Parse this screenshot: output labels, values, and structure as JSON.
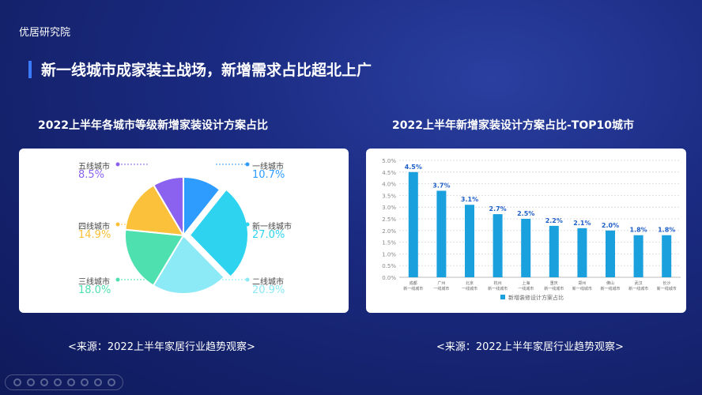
{
  "logo": "优居研究院",
  "title": "新一线城市成家装主战场，新增需求占比超北上广",
  "left": {
    "subtitle": "2022上半年各城市等级新增家装设计方案占比",
    "source": "<来源：2022上半年家居行业趋势观察>"
  },
  "right": {
    "subtitle": "2022上半年新增家装设计方案占比-TOP10城市",
    "source": "<来源：2022上半年家居行业趋势观察>"
  },
  "chart_data": [
    {
      "type": "pie",
      "slices": [
        {
          "label": "一线城市",
          "value": 10.7,
          "text": "10.7%",
          "color": "#2e9bff"
        },
        {
          "label": "新一线城市",
          "value": 27.0,
          "text": "27.0%",
          "color": "#2ed3f0"
        },
        {
          "label": "二线城市",
          "value": 20.9,
          "text": "20.9%",
          "color": "#8ceaf7"
        },
        {
          "label": "三线城市",
          "value": 18.0,
          "text": "18.0%",
          "color": "#4fe0b0"
        },
        {
          "label": "四线城市",
          "value": 14.9,
          "text": "14.9%",
          "color": "#fbc13a"
        },
        {
          "label": "五线城市",
          "value": 8.5,
          "text": "8.5%",
          "color": "#8b62f0"
        }
      ]
    },
    {
      "type": "bar",
      "ylim": [
        0,
        5
      ],
      "yticks": [
        "0.0%",
        "0.5%",
        "1.0%",
        "1.5%",
        "2.0%",
        "2.5%",
        "3.0%",
        "3.5%",
        "4.0%",
        "4.5%",
        "5.0%"
      ],
      "legend": "新增装修设计方案占比",
      "color": "#1aa0dc",
      "categories": [
        [
          "成都",
          "新一线城市"
        ],
        [
          "广州",
          "一线城市"
        ],
        [
          "北京",
          "一线城市"
        ],
        [
          "杭州",
          "新一线城市"
        ],
        [
          "上海",
          "一线城市"
        ],
        [
          "重庆",
          "新一线城市"
        ],
        [
          "郑州",
          "新一线城市"
        ],
        [
          "佛山",
          "新一线城市"
        ],
        [
          "武汉",
          "新一线城市"
        ],
        [
          "长沙",
          "新一线城市"
        ]
      ],
      "values": [
        4.5,
        3.7,
        3.1,
        2.7,
        2.5,
        2.2,
        2.1,
        2.0,
        1.8,
        1.8
      ],
      "labels": [
        "4.5%",
        "3.7%",
        "3.1%",
        "2.7%",
        "2.5%",
        "2.2%",
        "2.1%",
        "2.0%",
        "1.8%",
        "1.8%"
      ]
    }
  ]
}
